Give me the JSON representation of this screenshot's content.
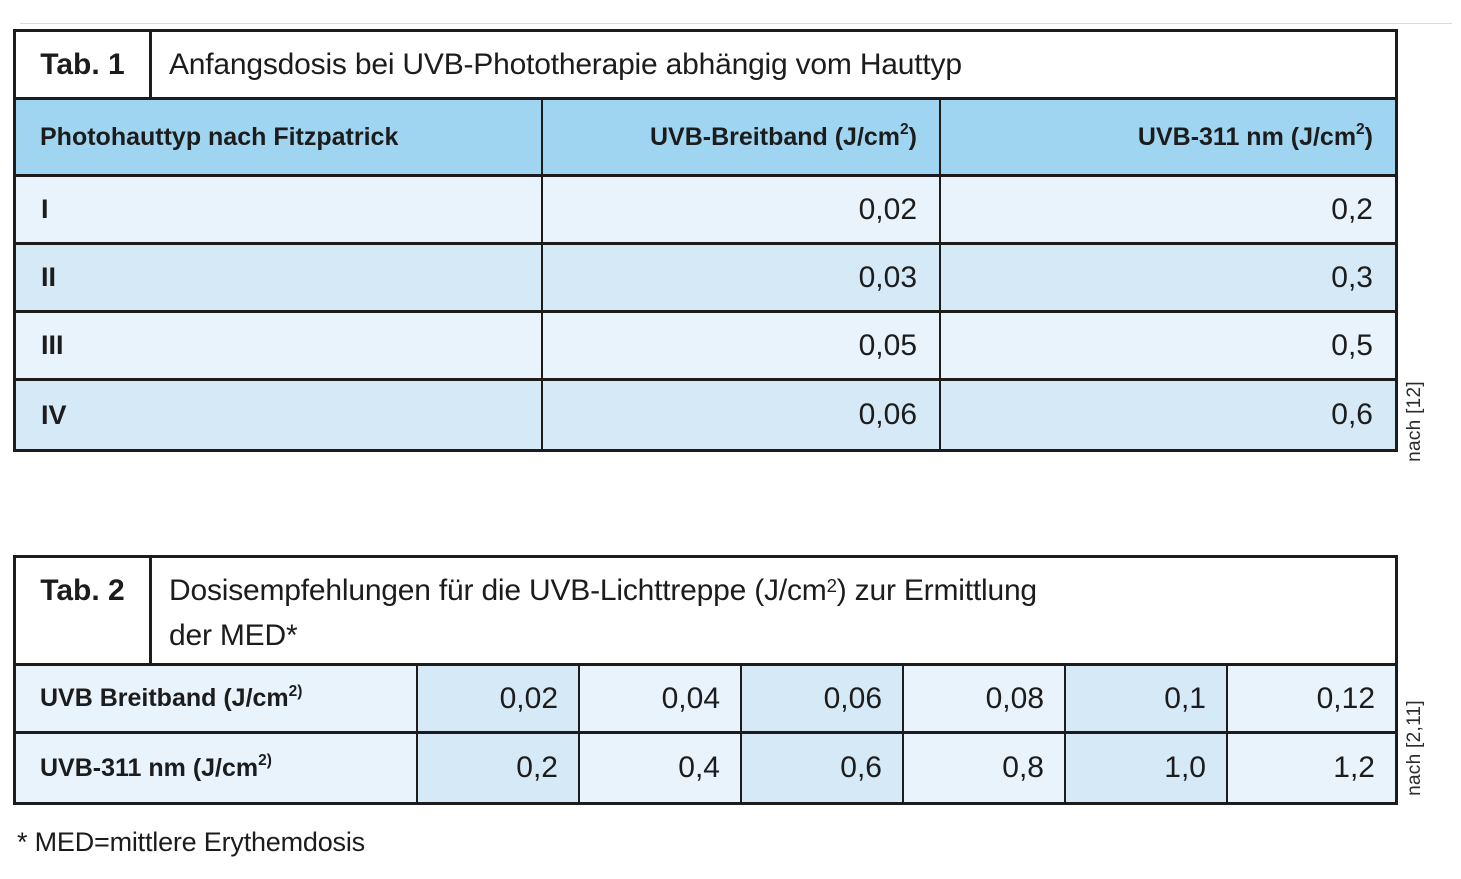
{
  "colors": {
    "header_blue": "#9fd5f0",
    "row_light": "#e9f3fb",
    "row_medium": "#d5e9f6",
    "border": "#1c1c1c"
  },
  "table1": {
    "tag": "Tab. 1",
    "title": "Anfangsdosis bei UVB-Phototherapie abhängig vom Hauttyp",
    "header": {
      "col1": "Photohauttyp nach Fitzpatrick",
      "col2_pre": "UVB-Breitband (J/cm",
      "col2_sup": "2",
      "col2_post": ")",
      "col3_pre": "UVB-311 nm (J/cm",
      "col3_sup": "2",
      "col3_post": ")"
    },
    "rows": [
      {
        "label": "I",
        "uvb_breitband": "0,02",
        "uvb_311": "0,2"
      },
      {
        "label": "II",
        "uvb_breitband": "0,03",
        "uvb_311": "0,3"
      },
      {
        "label": "III",
        "uvb_breitband": "0,05",
        "uvb_311": "0,5"
      },
      {
        "label": "IV",
        "uvb_breitband": "0,06",
        "uvb_311": "0,6"
      }
    ],
    "source": "nach [12]"
  },
  "table2": {
    "tag": "Tab. 2",
    "title_pre": "Dosisempfehlungen für die UVB-Lichttreppe (J/cm",
    "title_sup": "2",
    "title_post": ") zur Ermittlung",
    "title_line2": "der MED*",
    "rows": [
      {
        "label_pre": "UVB Breitband (J/cm",
        "label_sup": "2)",
        "values": [
          "0,02",
          "0,04",
          "0,06",
          "0,08",
          "0,1",
          "0,12"
        ]
      },
      {
        "label_pre": "UVB-311 nm (J/cm",
        "label_sup": "2)",
        "values": [
          "0,2",
          "0,4",
          "0,6",
          "0,8",
          "1,0",
          "1,2"
        ]
      }
    ],
    "source": "nach [2,11]"
  },
  "footnote": "* MED=mittlere Erythemdosis"
}
